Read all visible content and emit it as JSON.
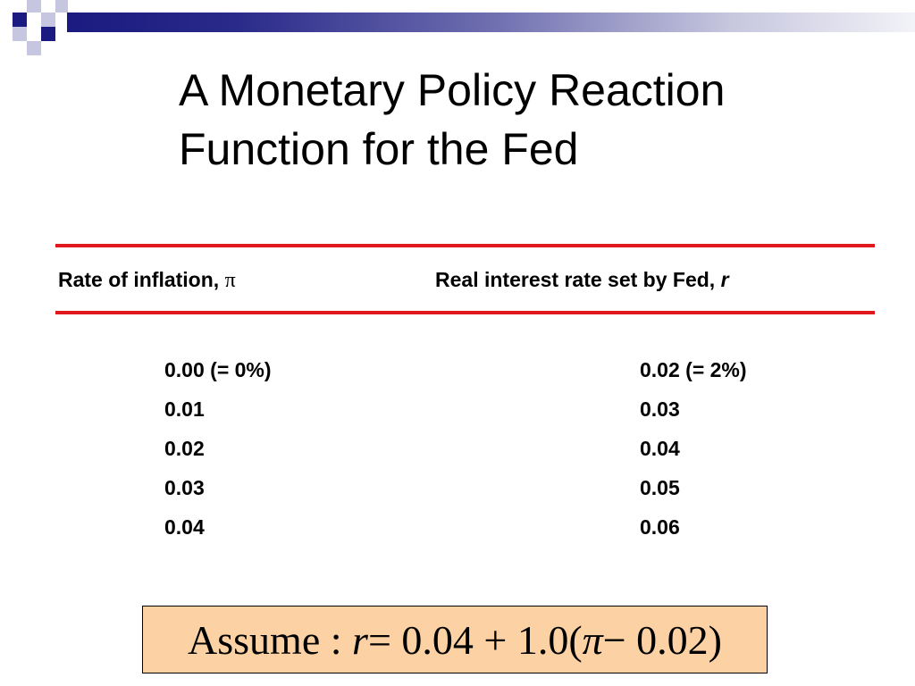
{
  "slide": {
    "title_line1": "A Monetary Policy Reaction",
    "title_line2": "Function for the Fed"
  },
  "table": {
    "col1_header": "Rate of inflation, ",
    "col1_header_symbol": "π",
    "col2_header": "Real interest rate set by Fed, ",
    "col2_header_symbol": "r",
    "inflation": [
      "0.00 (= 0%)",
      "0.01",
      "0.02",
      "0.03",
      "0.04"
    ],
    "real_rate": [
      "0.02 (= 2%)",
      "0.03",
      "0.04",
      "0.05",
      "0.06"
    ]
  },
  "formula": {
    "prefix": "Assume : ",
    "var_r": "r",
    "mid": " = 0.04 + 1.0(",
    "var_pi": "π",
    "suffix": " − 0.02)"
  },
  "colors": {
    "rule": "#e0191e",
    "formula_bg": "#fcd2a4",
    "header_dark": "#1a1a80"
  }
}
